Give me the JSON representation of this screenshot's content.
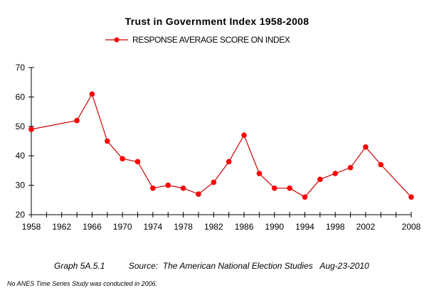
{
  "chart_data": {
    "type": "line",
    "title": "Trust in Government Index 1958-2008",
    "legend": {
      "entries": [
        "RESPONSE   AVERAGE SCORE ON INDEX"
      ],
      "placement": "top"
    },
    "series": [
      {
        "name": "RESPONSE   AVERAGE SCORE ON INDEX",
        "color": "#ff0000",
        "line_color": "#cc0000",
        "x": [
          1958,
          1964,
          1966,
          1968,
          1970,
          1972,
          1974,
          1976,
          1978,
          1980,
          1982,
          1984,
          1986,
          1988,
          1990,
          1992,
          1994,
          1996,
          1998,
          2000,
          2002,
          2004,
          2008
        ],
        "values": [
          49,
          52,
          61,
          45,
          39,
          38,
          29,
          30,
          29,
          27,
          31,
          38,
          47,
          34,
          29,
          29,
          26,
          32,
          34,
          36,
          43,
          37,
          26
        ]
      }
    ],
    "xlabel": "",
    "ylabel": "",
    "xlim": [
      1958,
      2008
    ],
    "ylim": [
      20,
      70
    ],
    "x_tick_step": 2,
    "x_tick_labels": [
      "1958",
      "1962",
      "1966",
      "1970",
      "1974",
      "1978",
      "1982",
      "1986",
      "1990",
      "1994",
      "1998",
      "2002",
      "2008"
    ],
    "y_tick_labels": [
      "20",
      "30",
      "40",
      "50",
      "60",
      "70"
    ],
    "grid": false
  },
  "caption": {
    "graph_id": "Graph 5A.5.1",
    "source": "Source:  The American National Election Studies",
    "date": "Aug-23-2010"
  },
  "note": "No ANES Time Series Study was conducted in 2006."
}
